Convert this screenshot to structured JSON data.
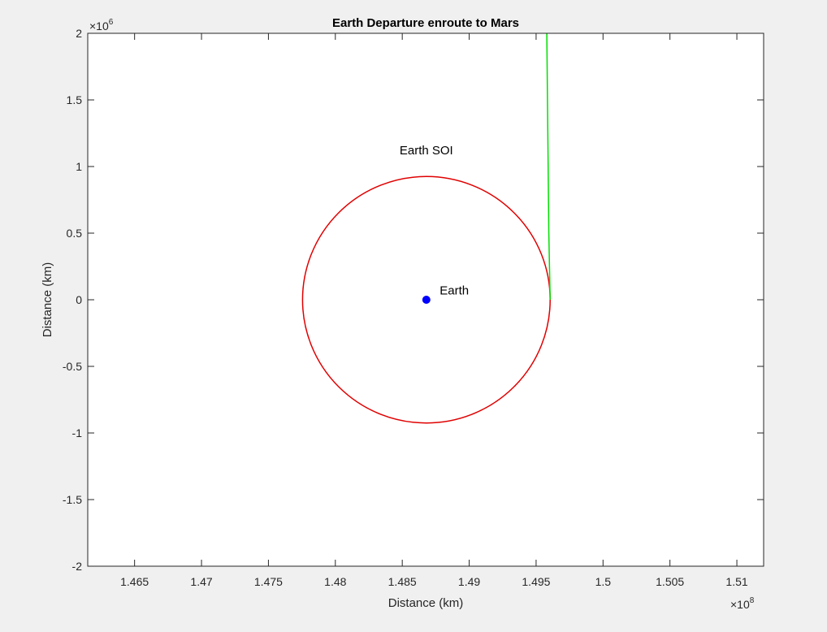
{
  "chart_data": {
    "type": "line",
    "title": "Earth Departure enroute to Mars",
    "xlabel": "Distance (km)",
    "ylabel": "Distance (km)",
    "x_exponent_label": "×10",
    "x_exponent": "8",
    "y_exponent_label": "×10",
    "y_exponent": "6",
    "xlim": [
      146150000,
      151200000
    ],
    "ylim": [
      -2000000,
      2000000
    ],
    "xticks": [
      146500000,
      147000000,
      147500000,
      148000000,
      148500000,
      149000000,
      149500000,
      150000000,
      150500000,
      151000000
    ],
    "xtick_labels": [
      "1.465",
      "1.47",
      "1.475",
      "1.48",
      "1.485",
      "1.49",
      "1.495",
      "1.5",
      "1.505",
      "1.51"
    ],
    "yticks": [
      2000000,
      1500000,
      1000000,
      500000,
      0,
      -500000,
      -1000000,
      -1500000,
      -2000000
    ],
    "ytick_labels": [
      "2",
      "1.5",
      "1",
      "0.5",
      "0",
      "-0.5",
      "-1",
      "-1.5",
      "-2"
    ],
    "grid": false,
    "series": [
      {
        "kind": "circle",
        "center": [
          148680000,
          0
        ],
        "radius": 925000,
        "color": "#e00000"
      },
      {
        "kind": "line",
        "x": [
          149605000,
          149595000,
          149585000,
          149580000
        ],
        "y": [
          0,
          500000,
          1500000,
          2000000
        ],
        "color": "#00e000"
      },
      {
        "kind": "marker",
        "x": 148680000,
        "y": 0,
        "color": "#0000ff"
      }
    ],
    "annotations": [
      {
        "text": "Earth",
        "x": 148780000,
        "y": 40000
      },
      {
        "text": "Earth SOI",
        "x": 148480000,
        "y": 1090000
      }
    ]
  }
}
